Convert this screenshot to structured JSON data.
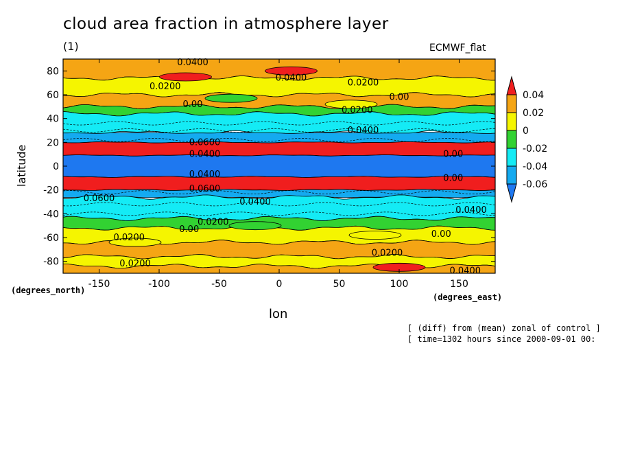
{
  "header": {
    "title": "cloud area fraction in atmosphere layer",
    "subtitle": "(1)",
    "model": "ECMWF_flat"
  },
  "axes": {
    "ylabel": "latitude",
    "yunit": "(degrees_north)",
    "xlabel": "lon",
    "xunit": "(degrees_east)"
  },
  "notes": {
    "line1": "[ (diff) from (mean) zonal of control ]",
    "line2": "[ time=1302 hours since 2000-09-01 00:"
  },
  "colors": {
    "c_lt_m06": "#1e78f0",
    "c_m06_m04": "#14aaf0",
    "c_m04_m02": "#14ebf5",
    "c_m02_0": "#32d232",
    "c_0_002": "#f5f500",
    "c_002_004": "#f5a514",
    "c_gt_004": "#f01e1e"
  },
  "chart_data": {
    "type": "heatmap",
    "title": "cloud area fraction in atmosphere layer",
    "xlabel": "lon",
    "ylabel": "latitude",
    "xlim": [
      -180,
      180
    ],
    "ylim": [
      -90,
      90
    ],
    "xticks": [
      "-150",
      "-100",
      "-50",
      "0",
      "50",
      "100",
      "150"
    ],
    "yticks": [
      "80",
      "60",
      "40",
      "20",
      "0",
      "-20",
      "-40",
      "-60",
      "-80"
    ],
    "colorbar": {
      "levels": [
        "0.04",
        "0.02",
        "0",
        "-0.02",
        "-0.04",
        "-0.06"
      ],
      "colors": [
        "#f01e1e",
        "#f5a514",
        "#f5f500",
        "#32d232",
        "#14ebf5",
        "#14aaf0",
        "#1e78f0"
      ]
    },
    "bands": [
      {
        "lat_from": 90,
        "lat_to": 74,
        "value": 0.03
      },
      {
        "lat_from": 74,
        "lat_to": 60,
        "value": 0.01
      },
      {
        "lat_from": 60,
        "lat_to": 50,
        "value": 0.03
      },
      {
        "lat_from": 50,
        "lat_to": 44,
        "value": -0.01
      },
      {
        "lat_from": 44,
        "lat_to": 28,
        "value": -0.03
      },
      {
        "lat_from": 28,
        "lat_to": 20,
        "value": -0.05
      },
      {
        "lat_from": 20,
        "lat_to": 9,
        "value": 0.05
      },
      {
        "lat_from": 9,
        "lat_to": -9,
        "value": -0.07
      },
      {
        "lat_from": -9,
        "lat_to": -20,
        "value": 0.05
      },
      {
        "lat_from": -20,
        "lat_to": -26,
        "value": -0.05
      },
      {
        "lat_from": -26,
        "lat_to": -44,
        "value": -0.03
      },
      {
        "lat_from": -44,
        "lat_to": -52,
        "value": -0.01
      },
      {
        "lat_from": -52,
        "lat_to": -64,
        "value": 0.01
      },
      {
        "lat_from": -64,
        "lat_to": -76,
        "value": 0.03
      },
      {
        "lat_from": -76,
        "lat_to": -84,
        "value": 0.01
      },
      {
        "lat_from": -84,
        "lat_to": -90,
        "value": 0.03
      }
    ],
    "patches": [
      {
        "lon": -78,
        "lat": 75,
        "value": 0.05
      },
      {
        "lon": 10,
        "lat": 80,
        "value": 0.05
      },
      {
        "lon": -40,
        "lat": 57,
        "value": -0.01
      },
      {
        "lon": 60,
        "lat": 52,
        "value": 0.01
      },
      {
        "lon": -120,
        "lat": -64,
        "value": 0.01
      },
      {
        "lon": 80,
        "lat": -58,
        "value": 0.01
      },
      {
        "lon": -20,
        "lat": -50,
        "value": -0.01
      },
      {
        "lon": 100,
        "lat": -85,
        "value": 0.05
      }
    ],
    "contour_labels": [
      {
        "text": "0.0400",
        "lon": -72,
        "lat": 87
      },
      {
        "text": "0.0400",
        "lon": 10,
        "lat": 74
      },
      {
        "text": "0.0200",
        "lon": -95,
        "lat": 67
      },
      {
        "text": "0.0200",
        "lon": 70,
        "lat": 70
      },
      {
        "text": "0.00",
        "lon": 100,
        "lat": 58
      },
      {
        "text": "0.00",
        "lon": -72,
        "lat": 52
      },
      {
        "text": "0.0200",
        "lon": 65,
        "lat": 47
      },
      {
        "text": "0.0400",
        "lon": 70,
        "lat": 30
      },
      {
        "text": "0.0600",
        "lon": -62,
        "lat": 20
      },
      {
        "text": "0.0400",
        "lon": -62,
        "lat": 10
      },
      {
        "text": "0.00",
        "lon": 145,
        "lat": 10
      },
      {
        "text": "0.0400",
        "lon": -62,
        "lat": -7
      },
      {
        "text": "0.00",
        "lon": 145,
        "lat": -10
      },
      {
        "text": "0.0600",
        "lon": -62,
        "lat": -19
      },
      {
        "text": "0.0600",
        "lon": -150,
        "lat": -27
      },
      {
        "text": "0.0400",
        "lon": -20,
        "lat": -30
      },
      {
        "text": "0.0400",
        "lon": 160,
        "lat": -37
      },
      {
        "text": "0.0200",
        "lon": -55,
        "lat": -47
      },
      {
        "text": "0.00",
        "lon": -75,
        "lat": -53
      },
      {
        "text": "0.00",
        "lon": 135,
        "lat": -57
      },
      {
        "text": "0.0200",
        "lon": -125,
        "lat": -60
      },
      {
        "text": "0.0200",
        "lon": 90,
        "lat": -73
      },
      {
        "text": "0.0200",
        "lon": -120,
        "lat": -82
      },
      {
        "text": "0.0400",
        "lon": 155,
        "lat": -88
      }
    ]
  }
}
